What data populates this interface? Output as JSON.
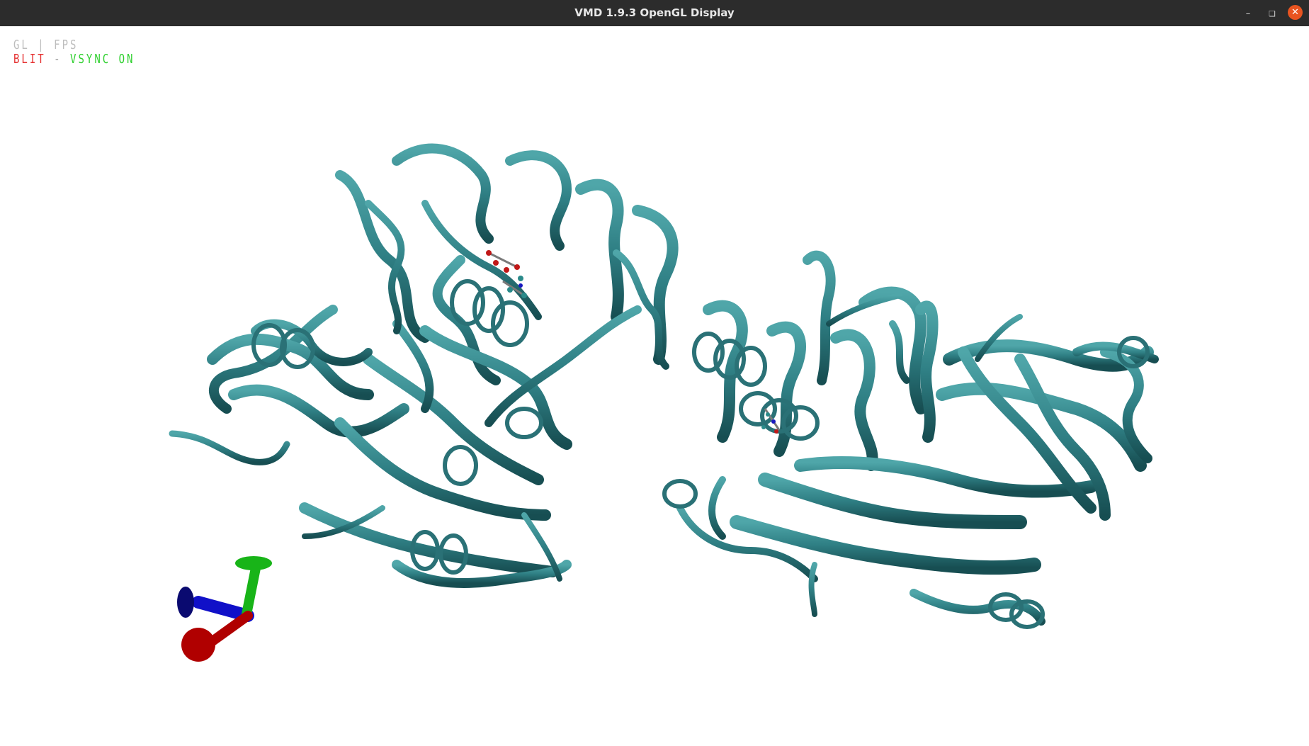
{
  "window": {
    "title": "VMD 1.9.3 OpenGL Display",
    "controls": [
      "minimize-icon",
      "maximize-icon",
      "close-icon"
    ]
  },
  "overlay": {
    "line1": "GL | FPS",
    "blit": "BLIT",
    "separator": "-",
    "vsync": "VSYNC ON"
  },
  "colors": {
    "titlebar": "#2c2c2c",
    "close_button": "#e95420",
    "protein_ribbon": "#2f7f84",
    "axis_x": "#b00000",
    "axis_y": "#18b418",
    "axis_z": "#1010c8"
  }
}
